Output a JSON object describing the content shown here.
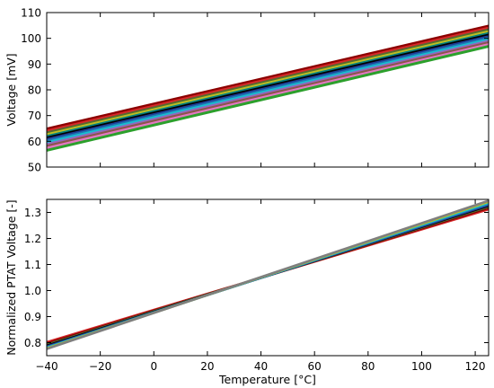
{
  "chart_data": [
    {
      "type": "line",
      "xlim": [
        -40,
        125
      ],
      "ylim": [
        50,
        110
      ],
      "xlabel": "",
      "ylabel": "Voltage [mV]",
      "yticks": [
        50,
        60,
        70,
        80,
        90,
        100,
        110
      ],
      "xticks": [
        -40,
        -20,
        0,
        20,
        40,
        60,
        80,
        100,
        120
      ],
      "xtick_labels_visible": false,
      "grid": false,
      "x": [
        -40,
        125
      ],
      "series": [
        {
          "values": [
            64.8,
            104.8
          ],
          "color": "#8b0000"
        },
        {
          "values": [
            64.0,
            104.0
          ],
          "color": "#d62728"
        },
        {
          "values": [
            63.3,
            103.3
          ],
          "color": "#556b2f"
        },
        {
          "values": [
            62.6,
            102.6
          ],
          "color": "#bcbd22"
        },
        {
          "values": [
            61.9,
            101.9
          ],
          "color": "#008080"
        },
        {
          "values": [
            61.3,
            101.3
          ],
          "color": "#000000"
        },
        {
          "values": [
            60.7,
            100.7
          ],
          "color": "#1f3a93"
        },
        {
          "values": [
            60.1,
            100.1
          ],
          "color": "#1f77b4"
        },
        {
          "values": [
            59.5,
            99.5
          ],
          "color": "#17becf"
        },
        {
          "values": [
            58.8,
            98.9
          ],
          "color": "#9467bd"
        },
        {
          "values": [
            58.1,
            98.3
          ],
          "color": "#8c564b"
        },
        {
          "values": [
            57.3,
            97.6
          ],
          "color": "#e377c2"
        },
        {
          "values": [
            56.5,
            96.9
          ],
          "color": "#2ca02c"
        }
      ]
    },
    {
      "type": "line",
      "xlim": [
        -40,
        125
      ],
      "ylim": [
        0.75,
        1.35
      ],
      "xlabel": "Temperature [°C]",
      "ylabel": "Normalized PTAT Voltage [-]",
      "yticks": [
        0.8,
        0.9,
        1.0,
        1.1,
        1.2,
        1.3
      ],
      "yticklabels": [
        "0.8",
        "0.9",
        "1.0",
        "1.1",
        "1.2",
        "1.3"
      ],
      "xticks": [
        -40,
        -20,
        0,
        20,
        40,
        60,
        80,
        100,
        120
      ],
      "grid": false,
      "x": [
        -40,
        125
      ],
      "series": [
        {
          "values": [
            0.802,
            1.312
          ],
          "color": "#d62728"
        },
        {
          "values": [
            0.797,
            1.317
          ],
          "color": "#8b0000"
        },
        {
          "values": [
            0.792,
            1.322
          ],
          "color": "#556b2f"
        },
        {
          "values": [
            0.788,
            1.326
          ],
          "color": "#000000"
        },
        {
          "values": [
            0.785,
            1.329
          ],
          "color": "#1f3a93"
        },
        {
          "values": [
            0.782,
            1.333
          ],
          "color": "#1f77b4"
        },
        {
          "values": [
            0.78,
            1.337
          ],
          "color": "#17becf"
        },
        {
          "values": [
            0.778,
            1.341
          ],
          "color": "#bcbd22"
        },
        {
          "values": [
            0.776,
            1.345
          ],
          "color": "#7f7f7f"
        }
      ]
    }
  ]
}
